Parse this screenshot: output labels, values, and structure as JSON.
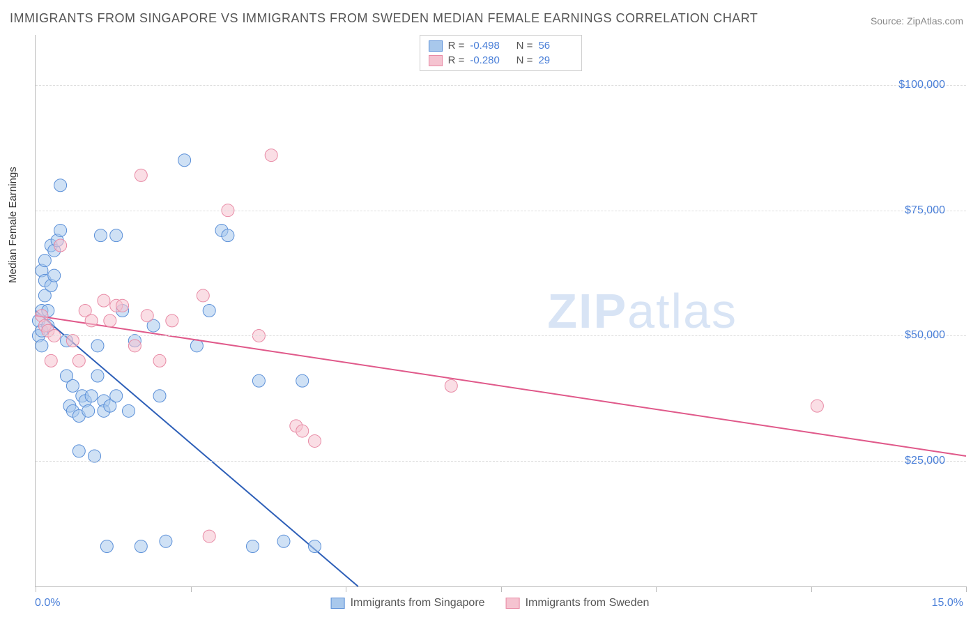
{
  "title": "IMMIGRANTS FROM SINGAPORE VS IMMIGRANTS FROM SWEDEN MEDIAN FEMALE EARNINGS CORRELATION CHART",
  "source": "Source: ZipAtlas.com",
  "watermark_bold": "ZIP",
  "watermark_light": "atlas",
  "chart": {
    "type": "scatter",
    "ylabel": "Median Female Earnings",
    "xlim": [
      0,
      15
    ],
    "ylim": [
      0,
      110000
    ],
    "y_ticks": [
      25000,
      50000,
      75000,
      100000
    ],
    "y_tick_labels": [
      "$25,000",
      "$50,000",
      "$75,000",
      "$100,000"
    ],
    "x_ticks": [
      0,
      2.5,
      5,
      7.5,
      10,
      12.5,
      15
    ],
    "x_tick_labels_shown": {
      "0": "0.0%",
      "15": "15.0%"
    },
    "background_color": "#ffffff",
    "grid_color": "#dddddd",
    "axis_color": "#bbbbbb",
    "tick_label_color": "#4a7fd8",
    "marker_radius": 9,
    "marker_opacity": 0.55,
    "line_width": 2,
    "series": [
      {
        "name": "Immigrants from Singapore",
        "fill_color": "#a8c8ec",
        "stroke_color": "#5a8fd8",
        "line_color": "#2d5fb8",
        "R": "-0.498",
        "N": "56",
        "trend": {
          "x1": 0,
          "y1": 55000,
          "x2": 5.2,
          "y2": 0
        },
        "points": [
          [
            0.05,
            53000
          ],
          [
            0.05,
            50000
          ],
          [
            0.1,
            51000
          ],
          [
            0.1,
            55000
          ],
          [
            0.1,
            48000
          ],
          [
            0.1,
            63000
          ],
          [
            0.15,
            65000
          ],
          [
            0.15,
            61000
          ],
          [
            0.15,
            58000
          ],
          [
            0.2,
            55000
          ],
          [
            0.2,
            52000
          ],
          [
            0.25,
            68000
          ],
          [
            0.25,
            60000
          ],
          [
            0.3,
            67000
          ],
          [
            0.3,
            62000
          ],
          [
            0.35,
            69000
          ],
          [
            0.4,
            71000
          ],
          [
            0.4,
            80000
          ],
          [
            0.5,
            49000
          ],
          [
            0.5,
            42000
          ],
          [
            0.55,
            36000
          ],
          [
            0.6,
            35000
          ],
          [
            0.6,
            40000
          ],
          [
            0.7,
            27000
          ],
          [
            0.7,
            34000
          ],
          [
            0.75,
            38000
          ],
          [
            0.8,
            37000
          ],
          [
            0.85,
            35000
          ],
          [
            0.9,
            38000
          ],
          [
            0.95,
            26000
          ],
          [
            1.0,
            48000
          ],
          [
            1.0,
            42000
          ],
          [
            1.05,
            70000
          ],
          [
            1.1,
            37000
          ],
          [
            1.1,
            35000
          ],
          [
            1.15,
            8000
          ],
          [
            1.2,
            36000
          ],
          [
            1.3,
            70000
          ],
          [
            1.3,
            38000
          ],
          [
            1.4,
            55000
          ],
          [
            1.5,
            35000
          ],
          [
            1.6,
            49000
          ],
          [
            1.7,
            8000
          ],
          [
            1.9,
            52000
          ],
          [
            2.0,
            38000
          ],
          [
            2.1,
            9000
          ],
          [
            2.4,
            85000
          ],
          [
            2.8,
            55000
          ],
          [
            3.0,
            71000
          ],
          [
            3.1,
            70000
          ],
          [
            3.5,
            8000
          ],
          [
            3.6,
            41000
          ],
          [
            4.0,
            9000
          ],
          [
            4.3,
            41000
          ],
          [
            4.5,
            8000
          ],
          [
            2.6,
            48000
          ]
        ]
      },
      {
        "name": "Immigrants from Sweden",
        "fill_color": "#f5c3d0",
        "stroke_color": "#e88aa5",
        "line_color": "#e0598a",
        "R": "-0.280",
        "N": "29",
        "trend": {
          "x1": 0,
          "y1": 54000,
          "x2": 15,
          "y2": 26000
        },
        "points": [
          [
            0.1,
            54000
          ],
          [
            0.15,
            52000
          ],
          [
            0.2,
            51000
          ],
          [
            0.25,
            45000
          ],
          [
            0.3,
            50000
          ],
          [
            0.4,
            68000
          ],
          [
            0.6,
            49000
          ],
          [
            0.7,
            45000
          ],
          [
            0.8,
            55000
          ],
          [
            0.9,
            53000
          ],
          [
            1.1,
            57000
          ],
          [
            1.2,
            53000
          ],
          [
            1.3,
            56000
          ],
          [
            1.4,
            56000
          ],
          [
            1.6,
            48000
          ],
          [
            1.7,
            82000
          ],
          [
            1.8,
            54000
          ],
          [
            2.0,
            45000
          ],
          [
            2.2,
            53000
          ],
          [
            2.7,
            58000
          ],
          [
            2.8,
            10000
          ],
          [
            3.1,
            75000
          ],
          [
            3.6,
            50000
          ],
          [
            3.8,
            86000
          ],
          [
            4.2,
            32000
          ],
          [
            4.3,
            31000
          ],
          [
            4.5,
            29000
          ],
          [
            6.7,
            40000
          ],
          [
            12.6,
            36000
          ]
        ]
      }
    ]
  }
}
